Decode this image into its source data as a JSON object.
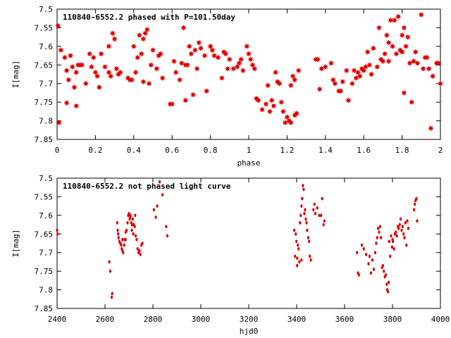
{
  "chart_data": [
    {
      "type": "scatter",
      "title": "110840-6552.2 phased with P=101.50day",
      "xlabel": "phase",
      "ylabel": "I[mag]",
      "xlim": [
        0,
        2
      ],
      "ylim": [
        7.5,
        7.85
      ],
      "y_inverted": true,
      "x_ticks": [
        "0",
        "0.2",
        "0.4",
        "0.6",
        "0.8",
        "1",
        "1.2",
        "1.4",
        "1.6",
        "1.8",
        "2"
      ],
      "y_ticks": [
        "7.5",
        "7.55",
        "7.6",
        "7.65",
        "7.7",
        "7.75",
        "7.8",
        "7.85"
      ],
      "marker_color": "#e00000",
      "marker": "star",
      "points": [
        [
          0.005,
          7.545
        ],
        [
          0.01,
          7.805
        ],
        [
          0.02,
          7.61
        ],
        [
          0.04,
          7.63
        ],
        [
          0.05,
          7.665
        ],
        [
          0.06,
          7.69
        ],
        [
          0.07,
          7.625
        ],
        [
          0.08,
          7.655
        ],
        [
          0.09,
          7.71
        ],
        [
          0.1,
          7.67
        ],
        [
          0.1,
          7.76
        ],
        [
          0.11,
          7.65
        ],
        [
          0.12,
          7.65
        ],
        [
          0.13,
          7.65
        ],
        [
          0.05,
          7.752
        ],
        [
          0.15,
          7.7
        ],
        [
          0.17,
          7.62
        ],
        [
          0.18,
          7.655
        ],
        [
          0.19,
          7.63
        ],
        [
          0.2,
          7.67
        ],
        [
          0.21,
          7.68
        ],
        [
          0.22,
          7.71
        ],
        [
          0.23,
          7.62
        ],
        [
          0.25,
          7.655
        ],
        [
          0.27,
          7.67
        ],
        [
          0.28,
          7.68
        ],
        [
          0.29,
          7.565
        ],
        [
          0.3,
          7.58
        ],
        [
          0.31,
          7.66
        ],
        [
          0.32,
          7.675
        ],
        [
          0.33,
          7.67
        ],
        [
          0.27,
          7.6
        ],
        [
          0.37,
          7.685
        ],
        [
          0.39,
          7.69
        ],
        [
          0.4,
          7.6
        ],
        [
          0.41,
          7.67
        ],
        [
          0.42,
          7.63
        ],
        [
          0.43,
          7.57
        ],
        [
          0.44,
          7.62
        ],
        [
          0.45,
          7.58
        ],
        [
          0.46,
          7.565
        ],
        [
          0.47,
          7.555
        ],
        [
          0.48,
          7.7
        ],
        [
          0.49,
          7.65
        ],
        [
          0.5,
          7.61
        ],
        [
          0.52,
          7.66
        ],
        [
          0.53,
          7.625
        ],
        [
          0.54,
          7.62
        ],
        [
          0.55,
          7.685
        ],
        [
          0.45,
          7.695
        ],
        [
          0.38,
          7.69
        ],
        [
          0.59,
          7.755
        ],
        [
          0.6,
          7.755
        ],
        [
          0.61,
          7.64
        ],
        [
          0.62,
          7.67
        ],
        [
          0.64,
          7.69
        ],
        [
          0.65,
          7.645
        ],
        [
          0.66,
          7.55
        ],
        [
          0.67,
          7.65
        ],
        [
          0.68,
          7.65
        ],
        [
          0.69,
          7.6
        ],
        [
          0.7,
          7.62
        ],
        [
          0.71,
          7.73
        ],
        [
          0.72,
          7.61
        ],
        [
          0.73,
          7.66
        ],
        [
          0.74,
          7.59
        ],
        [
          0.75,
          7.605
        ],
        [
          0.77,
          7.625
        ],
        [
          0.78,
          7.72
        ],
        [
          0.67,
          7.745
        ],
        [
          0.8,
          7.6
        ],
        [
          0.81,
          7.61
        ],
        [
          0.82,
          7.625
        ],
        [
          0.84,
          7.63
        ],
        [
          0.86,
          7.685
        ],
        [
          0.87,
          7.615
        ],
        [
          0.88,
          7.62
        ],
        [
          0.89,
          7.66
        ],
        [
          0.9,
          7.635
        ],
        [
          0.92,
          7.66
        ],
        [
          0.94,
          7.655
        ],
        [
          0.95,
          7.645
        ],
        [
          0.96,
          7.635
        ],
        [
          0.97,
          7.665
        ],
        [
          0.99,
          7.6
        ],
        [
          1.0,
          7.62
        ],
        [
          1.01,
          7.635
        ],
        [
          1.02,
          7.65
        ],
        [
          1.03,
          7.66
        ],
        [
          1.04,
          7.74
        ],
        [
          1.05,
          7.745
        ],
        [
          1.07,
          7.77
        ],
        [
          1.09,
          7.755
        ],
        [
          1.1,
          7.705
        ],
        [
          1.11,
          7.775
        ],
        [
          1.12,
          7.745
        ],
        [
          1.13,
          7.76
        ],
        [
          1.14,
          7.67
        ],
        [
          1.15,
          7.695
        ],
        [
          1.16,
          7.7
        ],
        [
          1.17,
          7.75
        ],
        [
          1.18,
          7.775
        ],
        [
          1.19,
          7.805
        ],
        [
          1.2,
          7.79
        ],
        [
          1.21,
          7.8
        ],
        [
          1.22,
          7.805
        ],
        [
          1.23,
          7.68
        ],
        [
          1.24,
          7.785
        ],
        [
          1.25,
          7.78
        ],
        [
          1.26,
          7.665
        ],
        [
          1.22,
          7.705
        ],
        [
          1.24,
          7.69
        ],
        [
          1.35,
          7.635
        ],
        [
          1.36,
          7.635
        ],
        [
          1.37,
          7.715
        ],
        [
          1.38,
          7.66
        ],
        [
          1.4,
          7.655
        ],
        [
          1.43,
          7.645
        ],
        [
          1.44,
          7.69
        ],
        [
          1.45,
          7.7
        ],
        [
          1.47,
          7.72
        ],
        [
          1.48,
          7.72
        ],
        [
          1.49,
          7.695
        ],
        [
          1.51,
          7.665
        ],
        [
          1.52,
          7.745
        ],
        [
          1.54,
          7.7
        ],
        [
          1.55,
          7.665
        ],
        [
          1.56,
          7.685
        ],
        [
          1.57,
          7.67
        ],
        [
          1.58,
          7.68
        ],
        [
          1.59,
          7.66
        ],
        [
          1.6,
          7.665
        ],
        [
          1.61,
          7.655
        ],
        [
          1.62,
          7.615
        ],
        [
          1.63,
          7.65
        ],
        [
          1.64,
          7.675
        ],
        [
          1.65,
          7.605
        ],
        [
          1.67,
          7.655
        ],
        [
          1.68,
          7.55
        ],
        [
          1.69,
          7.635
        ],
        [
          1.7,
          7.64
        ],
        [
          1.71,
          7.62
        ],
        [
          1.72,
          7.57
        ],
        [
          1.73,
          7.64
        ],
        [
          1.74,
          7.53
        ],
        [
          1.75,
          7.6
        ],
        [
          1.76,
          7.53
        ],
        [
          1.77,
          7.62
        ],
        [
          1.78,
          7.52
        ],
        [
          1.79,
          7.61
        ],
        [
          1.8,
          7.615
        ],
        [
          1.81,
          7.725
        ],
        [
          1.82,
          7.6
        ],
        [
          1.83,
          7.575
        ],
        [
          1.84,
          7.645
        ],
        [
          1.85,
          7.75
        ],
        [
          1.86,
          7.64
        ],
        [
          1.88,
          7.645
        ],
        [
          1.9,
          7.515
        ],
        [
          1.91,
          7.66
        ],
        [
          1.92,
          7.63
        ],
        [
          1.93,
          7.63
        ],
        [
          1.94,
          7.66
        ],
        [
          1.95,
          7.82
        ],
        [
          1.96,
          7.68
        ],
        [
          1.98,
          7.645
        ],
        [
          1.99,
          7.645
        ],
        [
          2.0,
          7.7
        ],
        [
          1.8,
          7.57
        ],
        [
          1.81,
          7.55
        ],
        [
          1.87,
          7.615
        ],
        [
          1.73,
          7.59
        ]
      ]
    },
    {
      "type": "scatter",
      "title": "110840-6552.2 not phased light curve",
      "xlabel": "hjd0",
      "ylabel": "I[mag]",
      "xlim": [
        2400,
        4000
      ],
      "ylim": [
        7.5,
        7.85
      ],
      "y_inverted": true,
      "x_ticks": [
        "2400",
        "2600",
        "2800",
        "3000",
        "3200",
        "3400",
        "3600",
        "3800",
        "4000"
      ],
      "y_ticks": [
        "7.5",
        "7.55",
        "7.6",
        "7.65",
        "7.7",
        "7.75",
        "7.8",
        "7.85"
      ],
      "marker_color": "#e00000",
      "marker": "dot",
      "points": [
        [
          2400,
          7.64
        ],
        [
          2402,
          7.65
        ],
        [
          2618,
          7.725
        ],
        [
          2622,
          7.75
        ],
        [
          2628,
          7.82
        ],
        [
          2630,
          7.81
        ],
        [
          2651,
          7.62
        ],
        [
          2653,
          7.64
        ],
        [
          2655,
          7.65
        ],
        [
          2657,
          7.66
        ],
        [
          2660,
          7.67
        ],
        [
          2664,
          7.675
        ],
        [
          2668,
          7.68
        ],
        [
          2670,
          7.69
        ],
        [
          2673,
          7.695
        ],
        [
          2676,
          7.7
        ],
        [
          2680,
          7.68
        ],
        [
          2683,
          7.665
        ],
        [
          2686,
          7.645
        ],
        [
          2690,
          7.64
        ],
        [
          2694,
          7.62
        ],
        [
          2697,
          7.6
        ],
        [
          2700,
          7.595
        ],
        [
          2703,
          7.61
        ],
        [
          2706,
          7.605
        ],
        [
          2710,
          7.62
        ],
        [
          2713,
          7.625
        ],
        [
          2716,
          7.61
        ],
        [
          2720,
          7.625
        ],
        [
          2724,
          7.63
        ],
        [
          2728,
          7.655
        ],
        [
          2732,
          7.665
        ],
        [
          2736,
          7.69
        ],
        [
          2740,
          7.7
        ],
        [
          2744,
          7.695
        ],
        [
          2748,
          7.705
        ],
        [
          2752,
          7.68
        ],
        [
          2756,
          7.675
        ],
        [
          2706,
          7.6
        ],
        [
          2712,
          7.64
        ],
        [
          2718,
          7.65
        ],
        [
          2726,
          7.6
        ],
        [
          2686,
          7.665
        ],
        [
          2673,
          7.665
        ],
        [
          2804,
          7.585
        ],
        [
          2812,
          7.605
        ],
        [
          2818,
          7.575
        ],
        [
          2828,
          7.51
        ],
        [
          2840,
          7.545
        ],
        [
          2855,
          7.63
        ],
        [
          2860,
          7.655
        ],
        [
          3390,
          7.64
        ],
        [
          3393,
          7.71
        ],
        [
          3396,
          7.65
        ],
        [
          3399,
          7.67
        ],
        [
          3402,
          7.715
        ],
        [
          3405,
          7.68
        ],
        [
          3408,
          7.69
        ],
        [
          3411,
          7.725
        ],
        [
          3414,
          7.62
        ],
        [
          3417,
          7.6
        ],
        [
          3420,
          7.575
        ],
        [
          3423,
          7.555
        ],
        [
          3426,
          7.52
        ],
        [
          3429,
          7.53
        ],
        [
          3432,
          7.595
        ],
        [
          3435,
          7.585
        ],
        [
          3438,
          7.61
        ],
        [
          3441,
          7.62
        ],
        [
          3444,
          7.64
        ],
        [
          3448,
          7.66
        ],
        [
          3452,
          7.67
        ],
        [
          3455,
          7.71
        ],
        [
          3459,
          7.72
        ],
        [
          3470,
          7.585
        ],
        [
          3474,
          7.57
        ],
        [
          3478,
          7.595
        ],
        [
          3486,
          7.58
        ],
        [
          3494,
          7.6
        ],
        [
          3502,
          7.6
        ],
        [
          3506,
          7.555
        ],
        [
          3512,
          7.625
        ],
        [
          3516,
          7.615
        ],
        [
          3402,
          7.735
        ],
        [
          3420,
          7.72
        ],
        [
          3652,
          7.7
        ],
        [
          3656,
          7.755
        ],
        [
          3660,
          7.76
        ],
        [
          3672,
          7.68
        ],
        [
          3680,
          7.69
        ],
        [
          3690,
          7.705
        ],
        [
          3700,
          7.73
        ],
        [
          3704,
          7.71
        ],
        [
          3710,
          7.755
        ],
        [
          3716,
          7.72
        ],
        [
          3722,
          7.745
        ],
        [
          3728,
          7.7
        ],
        [
          3732,
          7.675
        ],
        [
          3736,
          7.66
        ],
        [
          3740,
          7.635
        ],
        [
          3744,
          7.645
        ],
        [
          3748,
          7.63
        ],
        [
          3752,
          7.66
        ],
        [
          3756,
          7.74
        ],
        [
          3760,
          7.735
        ],
        [
          3764,
          7.75
        ],
        [
          3768,
          7.765
        ],
        [
          3772,
          7.76
        ],
        [
          3776,
          7.785
        ],
        [
          3778,
          7.8
        ],
        [
          3781,
          7.805
        ],
        [
          3784,
          7.78
        ],
        [
          3790,
          7.71
        ],
        [
          3794,
          7.655
        ],
        [
          3798,
          7.685
        ],
        [
          3802,
          7.67
        ],
        [
          3806,
          7.69
        ],
        [
          3810,
          7.65
        ],
        [
          3814,
          7.645
        ],
        [
          3818,
          7.655
        ],
        [
          3822,
          7.63
        ],
        [
          3826,
          7.635
        ],
        [
          3830,
          7.625
        ],
        [
          3834,
          7.61
        ],
        [
          3838,
          7.64
        ],
        [
          3842,
          7.63
        ],
        [
          3846,
          7.65
        ],
        [
          3850,
          7.66
        ],
        [
          3854,
          7.62
        ],
        [
          3858,
          7.68
        ],
        [
          3862,
          7.615
        ],
        [
          3866,
          7.635
        ],
        [
          3890,
          7.585
        ],
        [
          3893,
          7.57
        ],
        [
          3896,
          7.56
        ],
        [
          3900,
          7.555
        ],
        [
          3903,
          7.615
        ],
        [
          3786,
          7.67
        ],
        [
          3800,
          7.665
        ]
      ]
    }
  ]
}
